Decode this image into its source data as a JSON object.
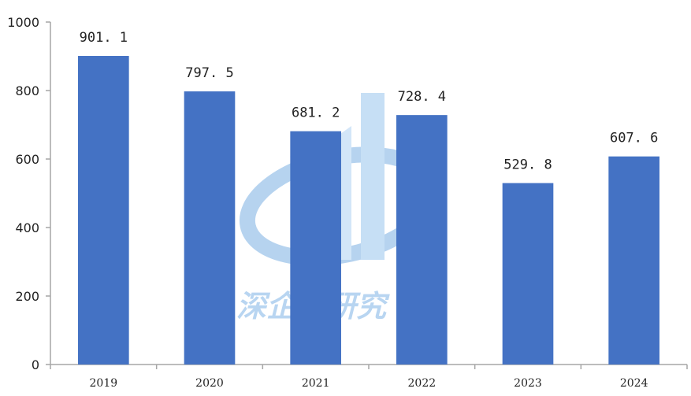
{
  "chart_data": {
    "type": "bar",
    "categories": [
      "2019",
      "2020",
      "2021",
      "2022",
      "2023",
      "2024"
    ],
    "values": [
      901.1,
      797.5,
      681.2,
      728.4,
      529.8,
      607.6
    ],
    "data_labels": [
      "901. 1",
      "797. 5",
      "681. 2",
      "728. 4",
      "529. 8",
      "607. 6"
    ],
    "ylim": [
      0,
      1000
    ],
    "yticks": [
      0,
      200,
      400,
      600,
      800,
      1000
    ],
    "ytick_labels": [
      "0",
      "200",
      "400",
      "600",
      "800",
      "1000"
    ],
    "bar_color": "#4472c4",
    "axis_color": "#a6a6a6",
    "grid": false,
    "title": "",
    "xlabel": "",
    "ylabel": ""
  },
  "watermark": {
    "text": "深企投研究",
    "color": "#7fb3e6"
  }
}
